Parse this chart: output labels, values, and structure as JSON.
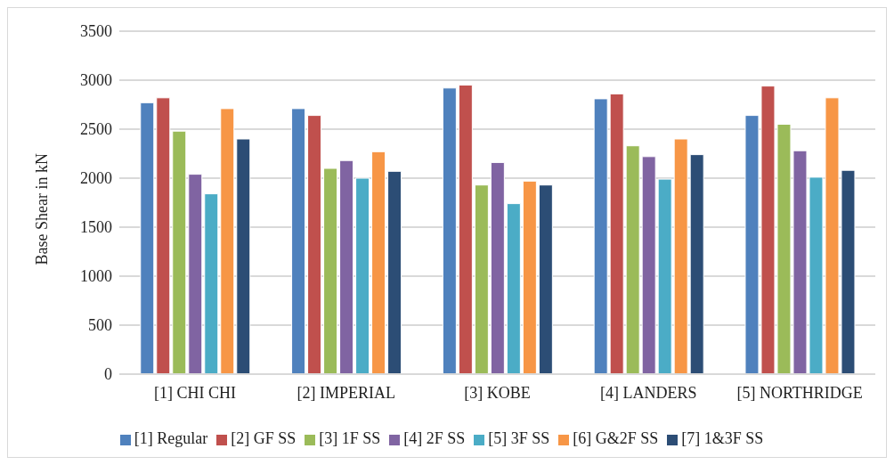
{
  "chart_data": {
    "type": "bar",
    "ylabel": "Base Shear in kN",
    "categories": [
      "[1] CHI CHI",
      "[2] IMPERIAL",
      "[3] KOBE",
      "[4] LANDERS",
      "[5] NORTHRIDGE"
    ],
    "series": [
      {
        "name": "[1] Regular",
        "color": "#4f81bd",
        "values": [
          2770,
          2710,
          2920,
          2810,
          2640
        ]
      },
      {
        "name": "[2] GF SS",
        "color": "#c0504d",
        "values": [
          2820,
          2640,
          2950,
          2860,
          2940
        ]
      },
      {
        "name": "[3] 1F SS",
        "color": "#9bbb59",
        "values": [
          2480,
          2100,
          1930,
          2330,
          2550
        ]
      },
      {
        "name": "[4] 2F SS",
        "color": "#8064a2",
        "values": [
          2040,
          2180,
          2160,
          2220,
          2280
        ]
      },
      {
        "name": "[5] 3F SS",
        "color": "#4bacc6",
        "values": [
          1840,
          2000,
          1740,
          1990,
          2010
        ]
      },
      {
        "name": "[6] G&2F SS",
        "color": "#f79646",
        "values": [
          2710,
          2270,
          1970,
          2400,
          2820
        ]
      },
      {
        "name": "[7] 1&3F SS",
        "color": "#2c4d75",
        "values": [
          2400,
          2070,
          1930,
          2240,
          2080
        ]
      }
    ],
    "ylim": [
      0,
      3500
    ],
    "yticks": [
      0,
      500,
      1000,
      1500,
      2000,
      2500,
      3000,
      3500
    ],
    "grid": "y",
    "legend": "bottom"
  }
}
